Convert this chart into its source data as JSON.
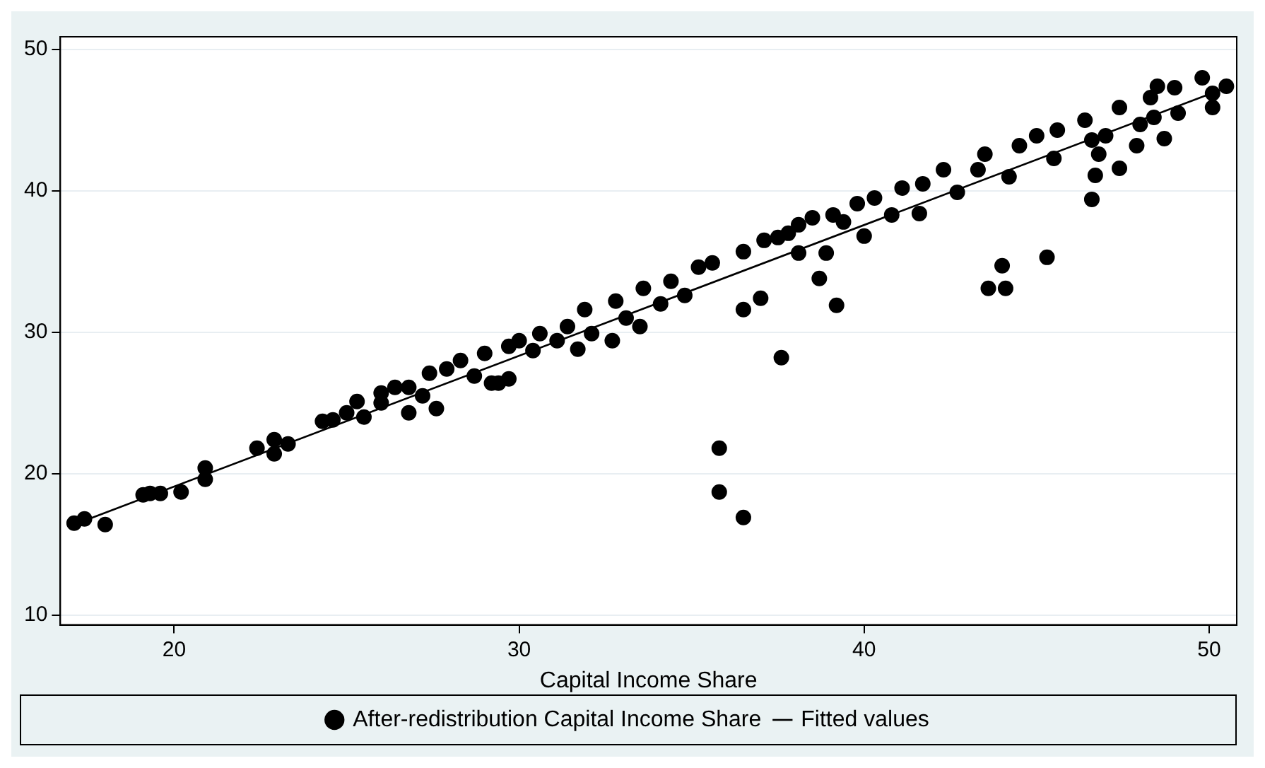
{
  "chart_data": {
    "type": "scatter",
    "xlabel": "Capital Income Share",
    "xlim": [
      16.7,
      50.8
    ],
    "ylim": [
      9.3,
      50.9
    ],
    "xticks": [
      20,
      30,
      40,
      50
    ],
    "yticks": [
      10,
      20,
      30,
      40,
      50
    ],
    "grid": "y",
    "legend": "bottom",
    "series": [
      {
        "name": "After-redistribution Capital Income Share",
        "color": "#000000",
        "marker": "circle",
        "x": [
          17.1,
          17.4,
          18.0,
          19.1,
          19.3,
          19.6,
          20.2,
          20.9,
          20.9,
          22.4,
          22.9,
          22.9,
          23.3,
          24.3,
          24.6,
          25.0,
          25.3,
          25.5,
          26.0,
          26.0,
          26.4,
          26.8,
          26.8,
          27.2,
          27.6,
          27.4,
          27.9,
          28.3,
          28.7,
          29.0,
          29.2,
          29.4,
          29.7,
          29.7,
          30.0,
          30.4,
          30.6,
          31.4,
          31.1,
          31.7,
          31.9,
          32.1,
          32.7,
          32.8,
          33.1,
          33.5,
          33.6,
          34.1,
          34.4,
          34.8,
          35.2,
          35.6,
          35.8,
          35.8,
          36.5,
          36.5,
          37.0,
          37.6,
          36.5,
          37.1,
          37.5,
          38.1,
          37.8,
          38.1,
          38.7,
          38.9,
          39.2,
          38.5,
          39.1,
          39.4,
          39.8,
          40.0,
          40.3,
          40.8,
          41.1,
          41.6,
          41.7,
          42.3,
          42.7,
          43.3,
          43.5,
          44.2,
          43.6,
          44.1,
          44.0,
          45.3,
          44.5,
          45.0,
          45.6,
          45.5,
          46.4,
          46.6,
          46.8,
          46.7,
          46.6,
          47.0,
          47.4,
          47.4,
          47.9,
          48.0,
          48.4,
          48.3,
          48.5,
          49.0,
          49.1,
          48.7,
          49.8,
          50.1,
          50.1,
          50.5
        ],
        "values": [
          16.5,
          16.8,
          16.4,
          18.5,
          18.6,
          18.6,
          18.7,
          20.4,
          19.6,
          21.8,
          21.4,
          22.4,
          22.1,
          23.7,
          23.8,
          24.3,
          25.1,
          24.0,
          25.7,
          25.0,
          26.1,
          26.1,
          24.3,
          25.5,
          24.6,
          27.1,
          27.4,
          28.0,
          26.9,
          28.5,
          26.4,
          26.4,
          26.7,
          29.0,
          29.4,
          28.7,
          29.9,
          30.4,
          29.4,
          28.8,
          31.6,
          29.9,
          29.4,
          32.2,
          31.0,
          30.4,
          33.1,
          32.0,
          33.6,
          32.6,
          34.6,
          34.9,
          21.8,
          18.7,
          16.9,
          31.6,
          32.4,
          28.2,
          35.7,
          36.5,
          36.7,
          37.6,
          37.0,
          35.6,
          33.8,
          35.6,
          31.9,
          38.1,
          38.3,
          37.8,
          39.1,
          36.8,
          39.5,
          38.3,
          40.2,
          38.4,
          40.5,
          41.5,
          39.9,
          41.5,
          42.6,
          41.0,
          33.1,
          33.1,
          34.7,
          35.3,
          43.2,
          43.9,
          44.3,
          42.3,
          45.0,
          43.6,
          42.6,
          41.1,
          39.4,
          43.9,
          45.9,
          41.6,
          43.2,
          44.7,
          45.2,
          46.6,
          47.4,
          47.3,
          45.5,
          43.7,
          48.0,
          46.9,
          45.9,
          47.4
        ]
      },
      {
        "name": "Fitted values",
        "color": "#000000",
        "type": "line",
        "x": [
          17.1,
          50.5
        ],
        "values": [
          16.4,
          47.3
        ]
      }
    ]
  }
}
